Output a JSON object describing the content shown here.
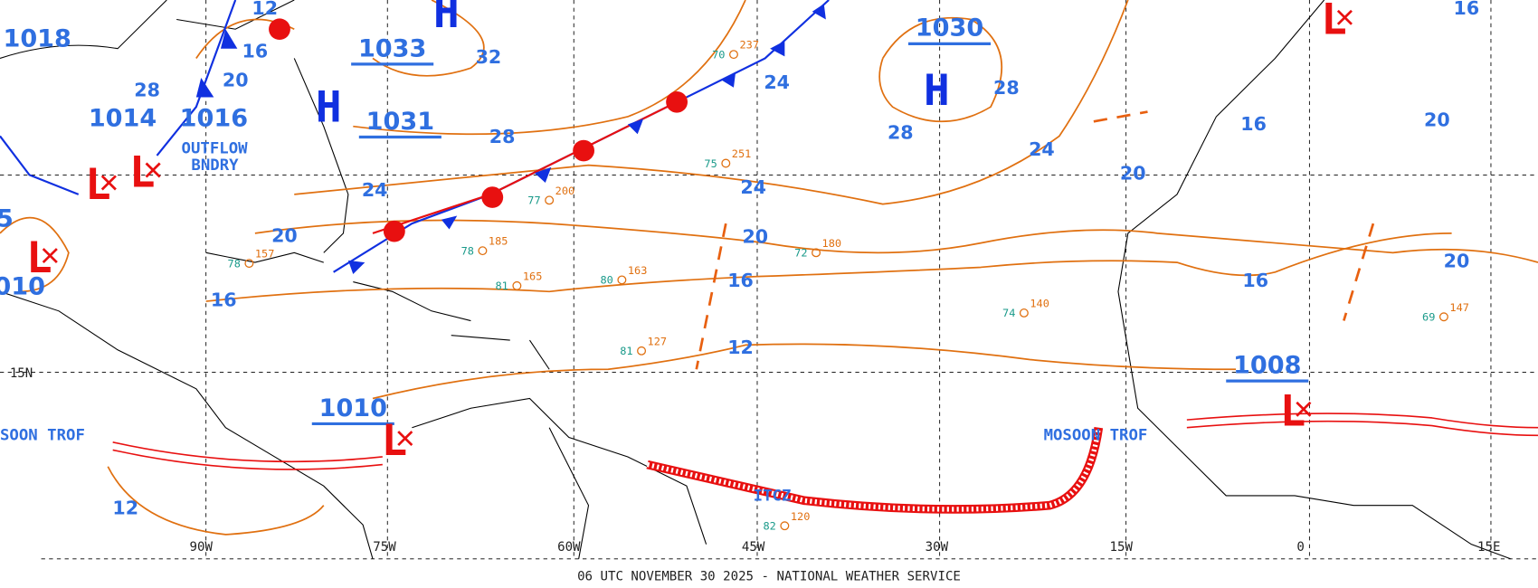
{
  "map": {
    "footer": "06 UTC NOVEMBER 30 2025 - NATIONAL WEATHER SERVICE",
    "longitudes": [
      "90W",
      "75W",
      "60W",
      "45W",
      "30W",
      "15W",
      "0",
      "15E"
    ],
    "latitudes": [
      "15N"
    ],
    "pressure_centers": [
      {
        "symbol": "H",
        "value": "1033"
      },
      {
        "symbol": "H",
        "value": "1031"
      },
      {
        "symbol": "H",
        "value": "1030"
      },
      {
        "symbol": "L",
        "value": "1010"
      },
      {
        "symbol": "L",
        "value": "1008"
      }
    ],
    "other_pressure_labels": [
      "1018",
      "1014",
      "1016",
      "010",
      "5"
    ],
    "other_symbols": [
      "H",
      "L",
      "L",
      "L",
      "L"
    ],
    "isobar_labels": [
      "32",
      "28",
      "20",
      "16",
      "28",
      "24",
      "20",
      "16",
      "24",
      "24",
      "20",
      "16",
      "12",
      "28",
      "28",
      "24",
      "20",
      "16",
      "20",
      "16",
      "20",
      "16",
      "12",
      "12"
    ],
    "features": {
      "outflow_boundary": [
        "OUTFLOW",
        "BNDRY"
      ],
      "monsoon_trough_west": "SOON TROF",
      "monsoon_trough_east": "MOSOON TROF",
      "itcz": "ITCZ"
    },
    "stations": [
      {
        "temp": "78",
        "pressure": "157"
      },
      {
        "temp": "77",
        "pressure": "200"
      },
      {
        "temp": "78",
        "pressure": "185"
      },
      {
        "temp": "81",
        "pressure": "165"
      },
      {
        "temp": "80",
        "pressure": "163"
      },
      {
        "temp": "72",
        "pressure": "180"
      },
      {
        "temp": "75",
        "pressure": "251"
      },
      {
        "temp": "70",
        "pressure": "237"
      },
      {
        "temp": "74",
        "pressure": "140"
      },
      {
        "temp": "69",
        "pressure": "147"
      },
      {
        "temp": "81",
        "pressure": "127"
      },
      {
        "temp": "82",
        "pressure": "120"
      }
    ]
  }
}
